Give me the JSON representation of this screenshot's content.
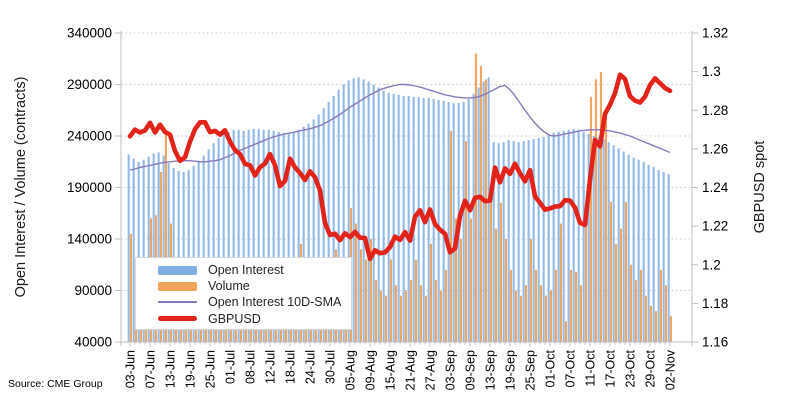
{
  "source_note": "Source: CME Group",
  "chart_data": {
    "type": "combo-bar-line",
    "grid": "horizontal-dotted",
    "n_points": 109,
    "x_labels": [
      "03-Jun",
      "07-Jun",
      "13-Jun",
      "19-Jun",
      "25-Jun",
      "01-Jul",
      "08-Jul",
      "12-Jul",
      "18-Jul",
      "24-Jul",
      "30-Jul",
      "05-Aug",
      "09-Aug",
      "15-Aug",
      "21-Aug",
      "27-Aug",
      "03-Sep",
      "09-Sep",
      "13-Sep",
      "19-Sep",
      "25-Sep",
      "01-Oct",
      "07-Oct",
      "11-Oct",
      "17-Oct",
      "23-Oct",
      "29-Oct",
      "02-Nov"
    ],
    "label_every_n_bars": 4,
    "left_axis": {
      "title": "Open Interest / Volume (contracts)",
      "tick_labels": [
        "340000",
        "290000",
        "240000",
        "190000",
        "140000",
        "90000",
        "40000"
      ],
      "min": 40000,
      "max": 340000
    },
    "right_axis": {
      "title": "GBPUSD spot",
      "tick_labels": [
        "1.32",
        "1.3",
        "1.28",
        "1.26",
        "1.24",
        "1.22",
        "1.2",
        "1.18",
        "1.16"
      ],
      "min": 1.16,
      "max": 1.32
    },
    "legend_position": "inside-lower-left",
    "colors": {
      "open_interest": "#7FAEE3",
      "volume": "#F2A55C",
      "sma": "#8A79BB",
      "gbpusd": "#E2231A",
      "gridline": "#c8c8c8",
      "axis": "#bfbfbf"
    },
    "series": [
      {
        "name": "Open Interest",
        "type": "bar",
        "axis": "left",
        "swatch": "bar",
        "color": "#7FAEE3",
        "values": [
          222000,
          218000,
          215000,
          217000,
          220000,
          223000,
          224000,
          221000,
          214000,
          209000,
          206000,
          205000,
          207000,
          211000,
          216000,
          221000,
          227000,
          233000,
          238000,
          242000,
          244000,
          246000,
          246000,
          245000,
          246000,
          247000,
          247000,
          246000,
          246000,
          245000,
          244000,
          243000,
          243000,
          244000,
          246000,
          249000,
          252000,
          256000,
          261000,
          267000,
          273000,
          279000,
          285000,
          290000,
          294000,
          296000,
          297000,
          295000,
          293000,
          290000,
          287000,
          284000,
          282000,
          281000,
          280000,
          279000,
          279000,
          278000,
          278000,
          277000,
          277000,
          276000,
          275000,
          274000,
          273000,
          272000,
          272000,
          273000,
          276000,
          281000,
          287000,
          293000,
          297000,
          234000,
          233000,
          234000,
          236000,
          235000,
          234000,
          235000,
          236000,
          237000,
          238000,
          239000,
          241000,
          243000,
          244000,
          245000,
          246000,
          247000,
          246000,
          244000,
          242000,
          240000,
          239000,
          237000,
          234000,
          231000,
          228000,
          225000,
          222000,
          219000,
          217000,
          215000,
          212000,
          210000,
          207000,
          205000,
          203000
        ]
      },
      {
        "name": "Volume",
        "type": "bar",
        "axis": "left",
        "swatch": "bar",
        "color": "#F2A55C",
        "values": [
          145000,
          85000,
          70000,
          80000,
          160000,
          163000,
          205000,
          245000,
          155000,
          90000,
          75000,
          85000,
          95000,
          80000,
          70000,
          75000,
          85000,
          75000,
          70000,
          65000,
          80000,
          70000,
          65000,
          60000,
          75000,
          70000,
          80000,
          75000,
          70000,
          65000,
          85000,
          95000,
          90000,
          80000,
          135000,
          90000,
          85000,
          95000,
          110000,
          100000,
          120000,
          130000,
          115000,
          105000,
          170000,
          155000,
          130000,
          120000,
          140000,
          100000,
          90000,
          85000,
          120000,
          95000,
          85000,
          90000,
          100000,
          120000,
          95000,
          85000,
          135000,
          100000,
          90000,
          110000,
          245000,
          160000,
          140000,
          235000,
          160000,
          320000,
          308000,
          295000,
          180000,
          150000,
          175000,
          140000,
          110000,
          90000,
          85000,
          95000,
          140000,
          110000,
          95000,
          85000,
          90000,
          110000,
          155000,
          60000,
          110000,
          108000,
          95000,
          152000,
          278000,
          295000,
          302000,
          262000,
          176000,
          135000,
          150000,
          176000,
          115000,
          100000,
          110000,
          85000,
          75000,
          70000,
          110000,
          95000,
          65000
        ]
      },
      {
        "name": "Open Interest 10D-SMA",
        "type": "line",
        "axis": "left",
        "swatch": "line",
        "color": "#8A79BB",
        "values": [
          207000,
          208000,
          209500,
          210500,
          211500,
          212500,
          213500,
          214500,
          215000,
          215500,
          216000,
          216000,
          216000,
          215500,
          215000,
          215000,
          215500,
          216000,
          217000,
          219000,
          221000,
          223500,
          226000,
          228000,
          230000,
          232000,
          234000,
          236000,
          238000,
          239500,
          241000,
          242000,
          243000,
          244000,
          245000,
          246000,
          247000,
          248500,
          250000,
          252500,
          255000,
          258000,
          261000,
          264500,
          268000,
          271000,
          274000,
          277000,
          280000,
          282500,
          285000,
          286500,
          288000,
          289000,
          290000,
          290000,
          289500,
          288500,
          287500,
          286000,
          284500,
          283000,
          281500,
          280000,
          279000,
          278000,
          277500,
          277000,
          277000,
          277500,
          278500,
          280500,
          283000,
          285500,
          288000,
          289000,
          285000,
          279000,
          272000,
          265000,
          258500,
          252500,
          247500,
          243500,
          240500,
          240000,
          241000,
          242000,
          243000,
          244000,
          245000,
          245500,
          246000,
          246000,
          246000,
          245500,
          245000,
          244000,
          243000,
          241500,
          240000,
          238000,
          236000,
          234000,
          232000,
          230000,
          228000,
          226000,
          224000
        ]
      },
      {
        "name": "GBPUSD",
        "type": "line-thick",
        "axis": "right",
        "swatch": "thick",
        "color": "#E2231A",
        "values": [
          1.2665,
          1.27,
          1.2685,
          1.2695,
          1.2735,
          1.2685,
          1.2725,
          1.2688,
          1.2674,
          1.2589,
          1.2538,
          1.2557,
          1.2637,
          1.2702,
          1.2737,
          1.2738,
          1.2687,
          1.2693,
          1.2674,
          1.2696,
          1.2637,
          1.2594,
          1.2573,
          1.2522,
          1.2515,
          1.2462,
          1.2505,
          1.2524,
          1.2573,
          1.2515,
          1.2407,
          1.2434,
          1.2549,
          1.2504,
          1.2475,
          1.2439,
          1.2484,
          1.2453,
          1.2384,
          1.2216,
          1.2154,
          1.2161,
          1.2127,
          1.2163,
          1.2143,
          1.217,
          1.214,
          1.2138,
          1.2031,
          1.2075,
          1.206,
          1.2064,
          1.2092,
          1.2146,
          1.2128,
          1.2169,
          1.2125,
          1.2249,
          1.2282,
          1.2221,
          1.2286,
          1.2211,
          1.2181,
          1.2161,
          1.2065,
          1.2085,
          1.2253,
          1.2331,
          1.2282,
          1.2346,
          1.2352,
          1.2329,
          1.2332,
          1.2503,
          1.2427,
          1.2499,
          1.2471,
          1.2523,
          1.2474,
          1.2432,
          1.249,
          1.2354,
          1.2321,
          1.2285,
          1.2292,
          1.2301,
          1.2303,
          1.2334,
          1.2332,
          1.2296,
          1.2217,
          1.2206,
          1.2441,
          1.2646,
          1.2613,
          1.2781,
          1.2828,
          1.2889,
          1.2984,
          1.2962,
          1.2873,
          1.285,
          1.284,
          1.287,
          1.293,
          1.2965,
          1.294,
          1.2915,
          1.29
        ]
      }
    ]
  }
}
